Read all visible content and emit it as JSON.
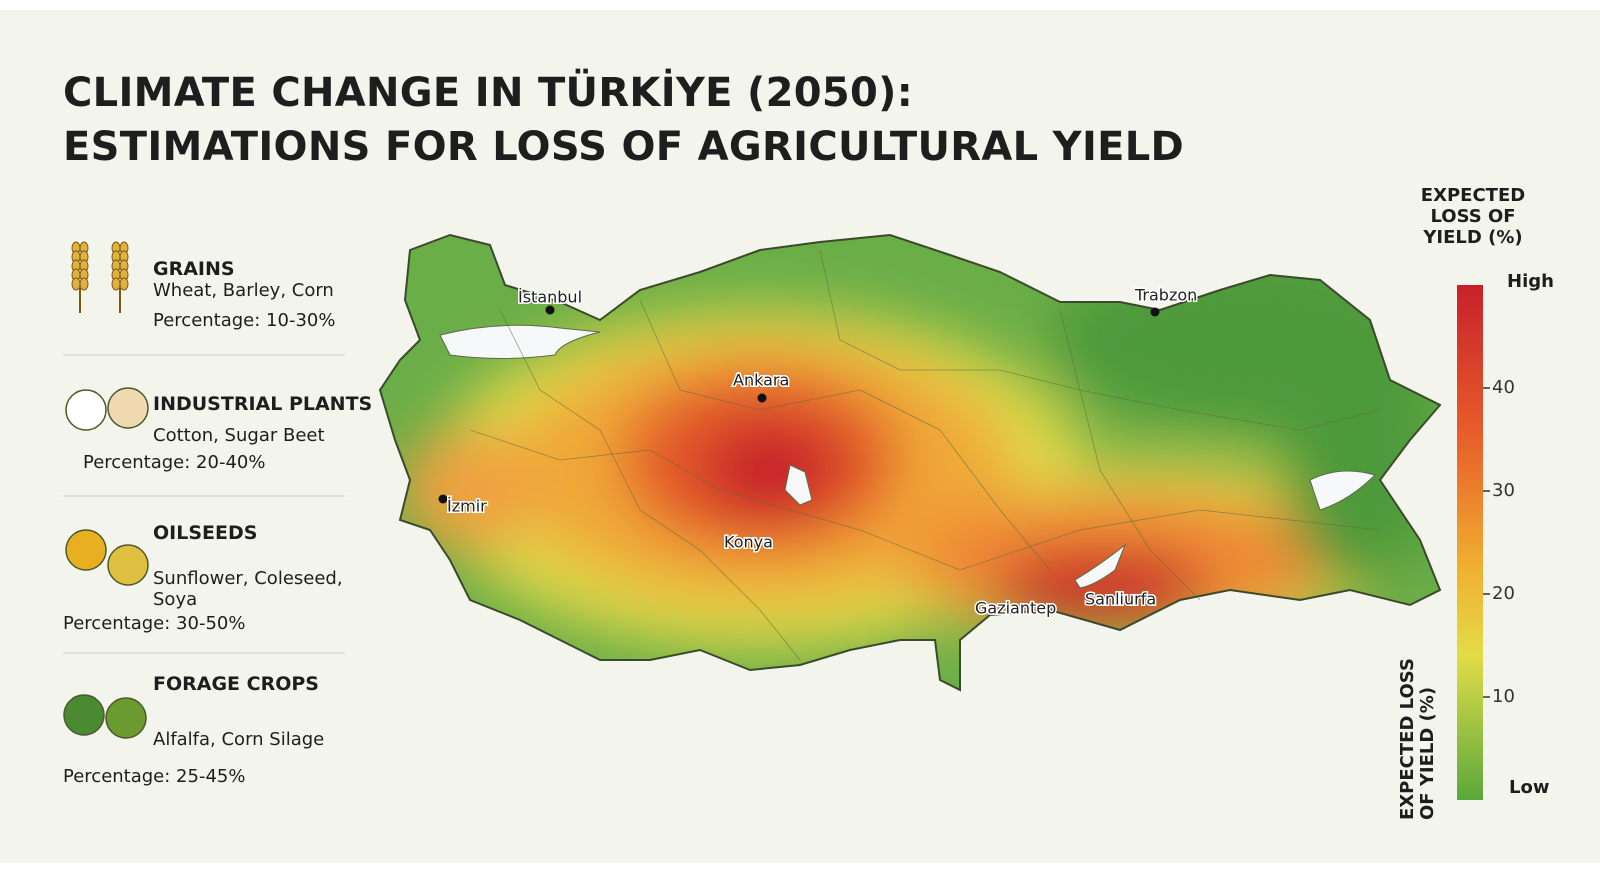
{
  "title": [
    "CLIMATE CHANGE IN TÜRKİYE (2050):",
    "ESTIMATIONS FOR LOSS OF AGRICULTURAL YIELD"
  ],
  "crops": [
    {
      "name": "GRAINS",
      "examples": "Wheat, Barley, Corn",
      "percentage": "Percentage: 10-30%"
    },
    {
      "name": "INDUSTRIAL PLANTS",
      "examples": "Cotton, Sugar Beet",
      "percentage": "Percentage: 20-40%"
    },
    {
      "name": "OILSEEDS",
      "examples": "Sunflower, Coleseed, Soya",
      "percentage": "Percentage: 30-50%"
    },
    {
      "name": "FORAGE CROPS",
      "examples": "Alfalfa, Corn Silage",
      "percentage": "Percentage: 25-45%"
    }
  ],
  "map": {
    "cities": [
      "İstanbul",
      "Trabzon",
      "Ankara",
      "İzmir",
      "Konya",
      "Gaziantep",
      "Sanliurfa"
    ]
  },
  "legend": {
    "title": "EXPECTED LOSS OF YIELD (%)",
    "high": "High",
    "low": "Low",
    "range": [
      0,
      50
    ],
    "ticks": [
      10,
      20,
      30,
      40
    ],
    "side_label": "EXPECTED LOSS OF YIELD (%)"
  }
}
